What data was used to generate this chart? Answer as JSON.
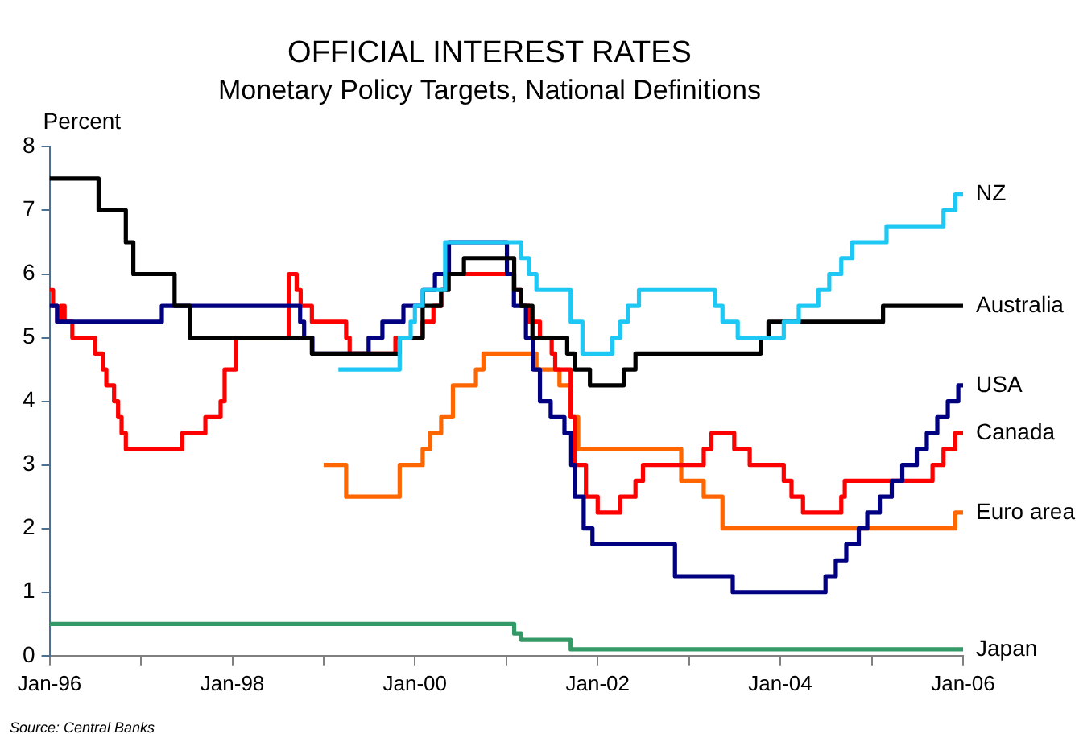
{
  "chart_data": {
    "type": "step",
    "title": "OFFICIAL INTEREST RATES",
    "subtitle": "Monetary Policy Targets, National Definitions",
    "ylabel": "Percent",
    "annotations": [
      "Source: Central Banks"
    ],
    "xlim": [
      "1996-01-01",
      "2006-01-01"
    ],
    "xticks": [
      {
        "value": "1996-01",
        "label": "Jan-96"
      },
      {
        "value": "1997-01",
        "label": null
      },
      {
        "value": "1998-01",
        "label": "Jan-98"
      },
      {
        "value": "1999-01",
        "label": null
      },
      {
        "value": "2000-01",
        "label": "Jan-00"
      },
      {
        "value": "2001-01",
        "label": null
      },
      {
        "value": "2002-01",
        "label": "Jan-02"
      },
      {
        "value": "2003-01",
        "label": null
      },
      {
        "value": "2004-01",
        "label": "Jan-04"
      },
      {
        "value": "2005-01",
        "label": null
      },
      {
        "value": "2006-01",
        "label": "Jan-06"
      }
    ],
    "ylim": [
      0,
      8
    ],
    "yticks": [
      0,
      1,
      2,
      3,
      4,
      5,
      6,
      7,
      8
    ],
    "grid": false,
    "legend": false,
    "marker": "none",
    "series": [
      {
        "name": "NZ",
        "color": "#1ec8f5",
        "x": [
          "1999-03-01",
          "1999-11-01",
          "1999-12-15",
          "2000-01-01",
          "2000-02-01",
          "2000-05-01",
          "2001-03-01",
          "2001-04-01",
          "2001-05-01",
          "2001-09-15",
          "2001-11-01",
          "2002-03-01",
          "2002-04-01",
          "2002-05-01",
          "2002-06-15",
          "2003-04-15",
          "2003-05-15",
          "2003-07-15",
          "2004-01-15",
          "2004-03-15",
          "2004-06-01",
          "2004-07-15",
          "2004-09-01",
          "2004-10-15",
          "2005-03-01",
          "2005-10-15",
          "2005-12-01",
          "2006-01-01"
        ],
        "values": [
          4.5,
          5.0,
          5.25,
          5.5,
          5.75,
          6.5,
          6.25,
          6.0,
          5.75,
          5.25,
          4.75,
          5.0,
          5.25,
          5.5,
          5.75,
          5.5,
          5.25,
          5.0,
          5.25,
          5.5,
          5.75,
          6.0,
          6.25,
          6.5,
          6.75,
          7.0,
          7.25,
          7.25
        ]
      },
      {
        "name": "Australia",
        "color": "#000000",
        "x": [
          "1996-01-01",
          "1996-07-15",
          "1996-11-01",
          "1996-12-01",
          "1997-05-15",
          "1997-07-15",
          "1998-11-15",
          "1999-11-01",
          "2000-02-01",
          "2000-04-15",
          "2000-05-15",
          "2000-07-15",
          "2001-02-01",
          "2001-03-01",
          "2001-04-15",
          "2001-09-01",
          "2001-10-01",
          "2001-12-01",
          "2002-04-15",
          "2002-06-01",
          "2003-10-15",
          "2003-11-15",
          "2005-02-15",
          "2006-01-01"
        ],
        "values": [
          7.5,
          7.0,
          6.5,
          6.0,
          5.5,
          5.0,
          4.75,
          5.0,
          5.5,
          5.75,
          6.0,
          6.25,
          5.75,
          5.5,
          5.0,
          4.75,
          4.5,
          4.25,
          4.5,
          4.75,
          5.0,
          5.25,
          5.5,
          5.5
        ]
      },
      {
        "name": "USA",
        "color": "#000080",
        "x": [
          "1996-01-01",
          "1996-01-31",
          "1997-03-25",
          "1998-09-29",
          "1998-10-15",
          "1998-11-17",
          "1999-06-30",
          "1999-08-24",
          "1999-11-16",
          "2000-02-02",
          "2000-03-21",
          "2000-05-16",
          "2001-01-03",
          "2001-01-31",
          "2001-03-20",
          "2001-04-18",
          "2001-05-15",
          "2001-06-27",
          "2001-08-21",
          "2001-09-17",
          "2001-10-02",
          "2001-11-06",
          "2001-12-11",
          "2002-11-06",
          "2003-06-25",
          "2004-06-30",
          "2004-08-10",
          "2004-09-21",
          "2004-11-10",
          "2004-12-14",
          "2005-02-02",
          "2005-03-22",
          "2005-05-03",
          "2005-06-30",
          "2005-08-09",
          "2005-09-20",
          "2005-11-01",
          "2005-12-13",
          "2006-01-01"
        ],
        "values": [
          5.5,
          5.25,
          5.5,
          5.25,
          5.0,
          4.75,
          5.0,
          5.25,
          5.5,
          5.75,
          6.0,
          6.5,
          6.0,
          5.5,
          5.0,
          4.5,
          4.0,
          3.75,
          3.5,
          3.0,
          2.5,
          2.0,
          1.75,
          1.25,
          1.0,
          1.25,
          1.5,
          1.75,
          2.0,
          2.25,
          2.5,
          2.75,
          3.0,
          3.25,
          3.5,
          3.75,
          4.0,
          4.25,
          4.25
        ]
      },
      {
        "name": "Canada",
        "color": "#ff0000",
        "x": [
          "1996-01-01",
          "1996-01-15",
          "1996-02-01",
          "1996-02-15",
          "1996-03-01",
          "1996-04-01",
          "1996-07-01",
          "1996-08-01",
          "1996-08-15",
          "1996-09-15",
          "1996-10-01",
          "1996-10-15",
          "1996-11-01",
          "1997-06-15",
          "1997-09-15",
          "1997-11-15",
          "1997-12-01",
          "1998-01-15",
          "1998-08-15",
          "1998-09-15",
          "1998-10-01",
          "1998-11-15",
          "1999-04-01",
          "1999-04-15",
          "1999-10-15",
          "2000-02-01",
          "2000-03-15",
          "2000-04-15",
          "2000-05-01",
          "2001-02-01",
          "2001-03-01",
          "2001-04-01",
          "2001-05-15",
          "2001-07-01",
          "2001-07-15",
          "2001-09-15",
          "2001-10-01",
          "2001-11-15",
          "2002-01-01",
          "2002-04-01",
          "2002-06-01",
          "2002-07-01",
          "2003-03-01",
          "2003-04-01",
          "2003-07-01",
          "2003-09-01",
          "2004-01-15",
          "2004-02-15",
          "2004-04-01",
          "2004-09-01",
          "2004-09-15",
          "2005-09-01",
          "2005-10-15",
          "2005-12-01",
          "2006-01-01"
        ],
        "values": [
          5.75,
          5.5,
          5.25,
          5.5,
          5.25,
          5.0,
          4.75,
          4.5,
          4.25,
          4.0,
          3.75,
          3.5,
          3.25,
          3.5,
          3.75,
          4.0,
          4.5,
          5.0,
          6.0,
          5.75,
          5.5,
          5.25,
          5.0,
          4.75,
          5.0,
          5.25,
          5.5,
          5.75,
          6.0,
          5.75,
          5.5,
          5.25,
          5.0,
          4.75,
          4.5,
          3.75,
          3.0,
          2.5,
          2.25,
          2.5,
          2.75,
          3.0,
          3.25,
          3.5,
          3.25,
          3.0,
          2.75,
          2.5,
          2.25,
          2.5,
          2.75,
          3.0,
          3.25,
          3.5,
          3.5
        ]
      },
      {
        "name": "Euro area",
        "color": "#ff6600",
        "x": [
          "1999-01-01",
          "1999-04-01",
          "1999-11-01",
          "2000-02-01",
          "2000-03-01",
          "2000-04-15",
          "2000-06-01",
          "2000-09-01",
          "2000-10-01",
          "2001-05-01",
          "2001-08-01",
          "2001-09-15",
          "2001-10-15",
          "2002-12-01",
          "2003-03-01",
          "2003-05-15",
          "2005-12-01",
          "2006-01-01"
        ],
        "values": [
          3.0,
          2.5,
          3.0,
          3.25,
          3.5,
          3.75,
          4.25,
          4.5,
          4.75,
          4.5,
          4.25,
          3.75,
          3.25,
          2.75,
          2.5,
          2.0,
          2.25,
          2.25
        ]
      },
      {
        "name": "Japan",
        "color": "#339966",
        "x": [
          "1996-01-01",
          "2001-02-01",
          "2001-03-01",
          "2001-09-15",
          "2006-01-01"
        ],
        "values": [
          0.5,
          0.35,
          0.25,
          0.1,
          0.1
        ]
      }
    ]
  }
}
